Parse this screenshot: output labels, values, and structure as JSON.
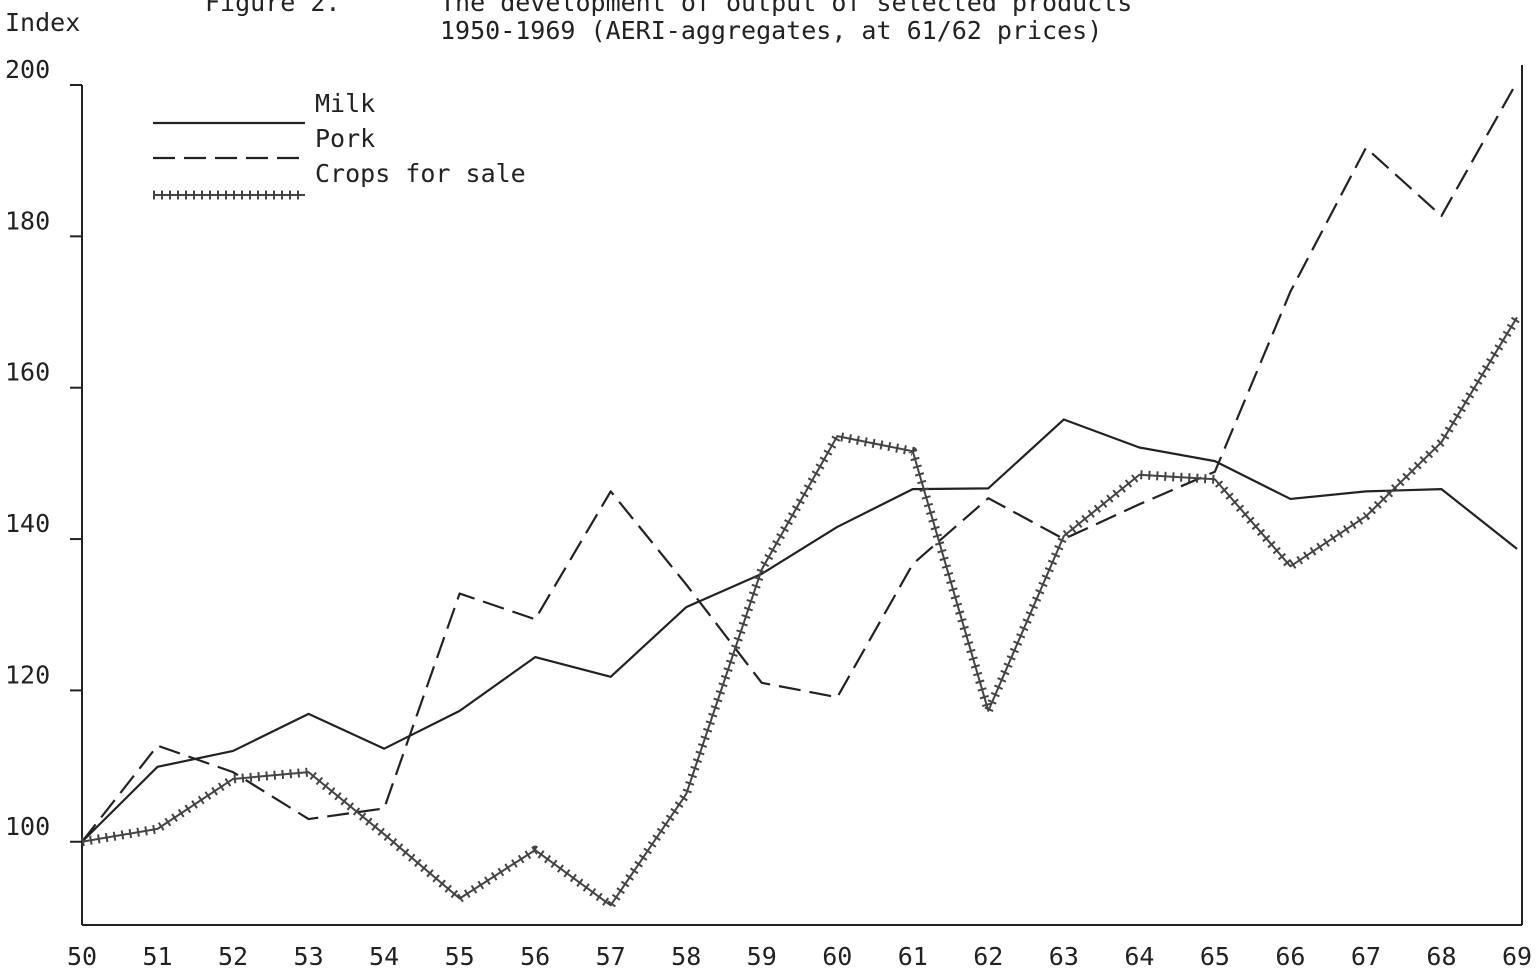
{
  "chart_data": {
    "type": "line",
    "figure_label": "Figure 2.",
    "title": "The development of output of selected products",
    "subtitle": "1950-1969 (AERI-aggregates, at 61/62 prices)",
    "y_label": "Index",
    "categories": [
      "50",
      "51",
      "52",
      "53",
      "54",
      "55",
      "56",
      "57",
      "58",
      "59",
      "60",
      "61",
      "62",
      "63",
      "64",
      "65",
      "66",
      "67",
      "68",
      "69"
    ],
    "series": [
      {
        "name": "Milk",
        "color": "#222222",
        "style": "solid",
        "values": [
          100,
          109.9,
          112,
          116.9,
          112.3,
          117.3,
          124.4,
          121.8,
          131,
          135.4,
          141.6,
          146.6,
          146.7,
          155.8,
          152.1,
          150.3,
          145.3,
          146.3,
          146.6,
          138.7
        ]
      },
      {
        "name": "Pork",
        "color": "#222222",
        "style": "dashed",
        "values": [
          100,
          112.7,
          109.2,
          103,
          104.4,
          132.8,
          129.4,
          146.3,
          134,
          121,
          119.1,
          136.7,
          145.4,
          140,
          144.6,
          148.9,
          172.7,
          191.7,
          182.7,
          200.4
        ]
      },
      {
        "name": "Crops for sale",
        "color": "#444444",
        "style": "crossed",
        "values": [
          100,
          101.7,
          108.3,
          109.2,
          101,
          92.5,
          98.9,
          91.6,
          106.3,
          136,
          153.6,
          151.6,
          117.3,
          140.4,
          148.5,
          147.9,
          136.4,
          143,
          152.8,
          169.3
        ]
      }
    ],
    "ylim": [
      89,
      200
    ],
    "yticks": [
      100,
      120,
      140,
      160,
      180,
      200
    ],
    "legend": "upper left"
  }
}
